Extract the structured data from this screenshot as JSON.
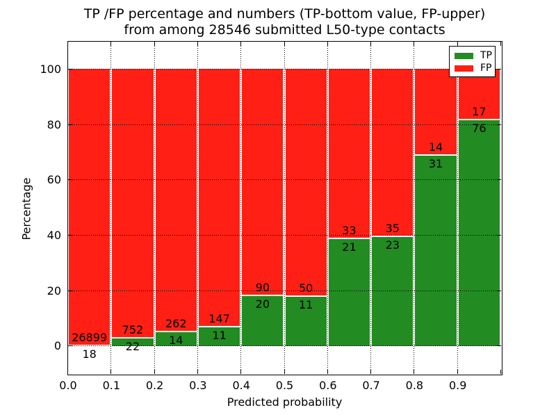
{
  "chart_data": {
    "type": "bar",
    "stacked": true,
    "title_lines": [
      "TP /FP percentage and numbers (TP-bottom value, FP-upper)",
      "from among 28546 submitted L50-type contacts"
    ],
    "title": "TP /FP percentage and numbers (TP-bottom value, FP-upper) from among 28546 submitted L50-type contacts",
    "xlabel": "Predicted probability",
    "ylabel": "Percentage",
    "xlim": [
      0.0,
      1.0
    ],
    "ylim": [
      -10,
      110
    ],
    "x_tick_labels": [
      "0.0",
      "0.1",
      "0.2",
      "0.3",
      "0.4",
      "0.5",
      "0.6",
      "0.7",
      "0.8",
      "0.9"
    ],
    "y_ticks": [
      0,
      20,
      40,
      60,
      80,
      100
    ],
    "grid": "dotted",
    "total_contacts": 28546,
    "legend": {
      "position": "upper right",
      "entries": [
        {
          "label": "TP",
          "color": "#228B22"
        },
        {
          "label": "FP",
          "color": "#FF1F15"
        }
      ]
    },
    "colors": {
      "tp": "#228B22",
      "fp": "#FF1F15",
      "axis": "#000000",
      "grid": "#000000",
      "background": "#FFFFFF"
    },
    "bins": [
      {
        "range": [
          0.0,
          0.1
        ],
        "tp": 18,
        "fp": 26899,
        "tp_pct": 0.07
      },
      {
        "range": [
          0.1,
          0.2
        ],
        "tp": 22,
        "fp": 752,
        "tp_pct": 2.84
      },
      {
        "range": [
          0.2,
          0.3
        ],
        "tp": 14,
        "fp": 262,
        "tp_pct": 5.07
      },
      {
        "range": [
          0.3,
          0.4
        ],
        "tp": 11,
        "fp": 147,
        "tp_pct": 6.96
      },
      {
        "range": [
          0.4,
          0.5
        ],
        "tp": 20,
        "fp": 90,
        "tp_pct": 18.18
      },
      {
        "range": [
          0.5,
          0.6
        ],
        "tp": 11,
        "fp": 50,
        "tp_pct": 18.03
      },
      {
        "range": [
          0.6,
          0.7
        ],
        "tp": 21,
        "fp": 33,
        "tp_pct": 38.89
      },
      {
        "range": [
          0.7,
          0.8
        ],
        "tp": 23,
        "fp": 35,
        "tp_pct": 39.66
      },
      {
        "range": [
          0.8,
          0.9
        ],
        "tp": 31,
        "fp": 14,
        "tp_pct": 68.89
      },
      {
        "range": [
          0.9,
          1.0
        ],
        "tp": 76,
        "fp": 17,
        "tp_pct": 81.72
      }
    ]
  }
}
